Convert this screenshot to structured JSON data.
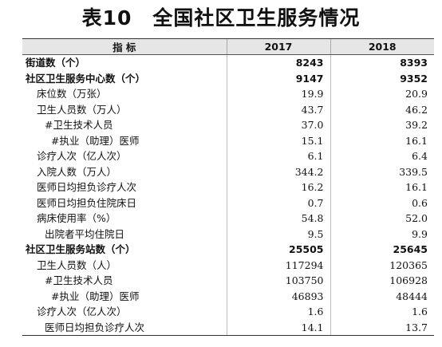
{
  "title": {
    "number": "表10",
    "text": "全国社区卫生服务情况"
  },
  "header": {
    "indicator": "指  标",
    "col1": "2017",
    "col2": "2018"
  },
  "rows": [
    {
      "label": "街道数（个）",
      "v2017": "8243",
      "v2018": "8393"
    },
    {
      "label": "社区卫生服务中心数（个）",
      "v2017": "9147",
      "v2018": "9352"
    },
    {
      "label": "床位数（万张）",
      "v2017": "19.9",
      "v2018": "20.9"
    },
    {
      "label": "卫生人员数（万人）",
      "v2017": "43.7",
      "v2018": "46.2"
    },
    {
      "label": "#卫生技术人员",
      "v2017": "37.0",
      "v2018": "39.2"
    },
    {
      "label": "#执业（助理）医师",
      "v2017": "15.1",
      "v2018": "16.1"
    },
    {
      "label": "诊疗人次（亿人次）",
      "v2017": "6.1",
      "v2018": "6.4"
    },
    {
      "label": "入院人数（万人）",
      "v2017": "344.2",
      "v2018": "339.5"
    },
    {
      "label": "医师日均担负诊疗人次",
      "v2017": "16.2",
      "v2018": "16.1"
    },
    {
      "label": "医师日均担负住院床日",
      "v2017": "0.7",
      "v2018": "0.6"
    },
    {
      "label": "病床使用率（%）",
      "v2017": "54.8",
      "v2018": "52.0"
    },
    {
      "label": "出院者平均住院日",
      "v2017": "9.5",
      "v2018": "9.9"
    },
    {
      "label": "社区卫生服务站数（个）",
      "v2017": "25505",
      "v2018": "25645"
    },
    {
      "label": "卫生人员数（人）",
      "v2017": "117294",
      "v2018": "120365"
    },
    {
      "label": "#卫生技术人员",
      "v2017": "103750",
      "v2018": "106928"
    },
    {
      "label": "#执业（助理）医师",
      "v2017": "46893",
      "v2018": "48444"
    },
    {
      "label": "诊疗人次（亿人次）",
      "v2017": "1.6",
      "v2018": "1.6"
    },
    {
      "label": "医师日均担负诊疗人次",
      "v2017": "14.1",
      "v2018": "13.7"
    }
  ]
}
